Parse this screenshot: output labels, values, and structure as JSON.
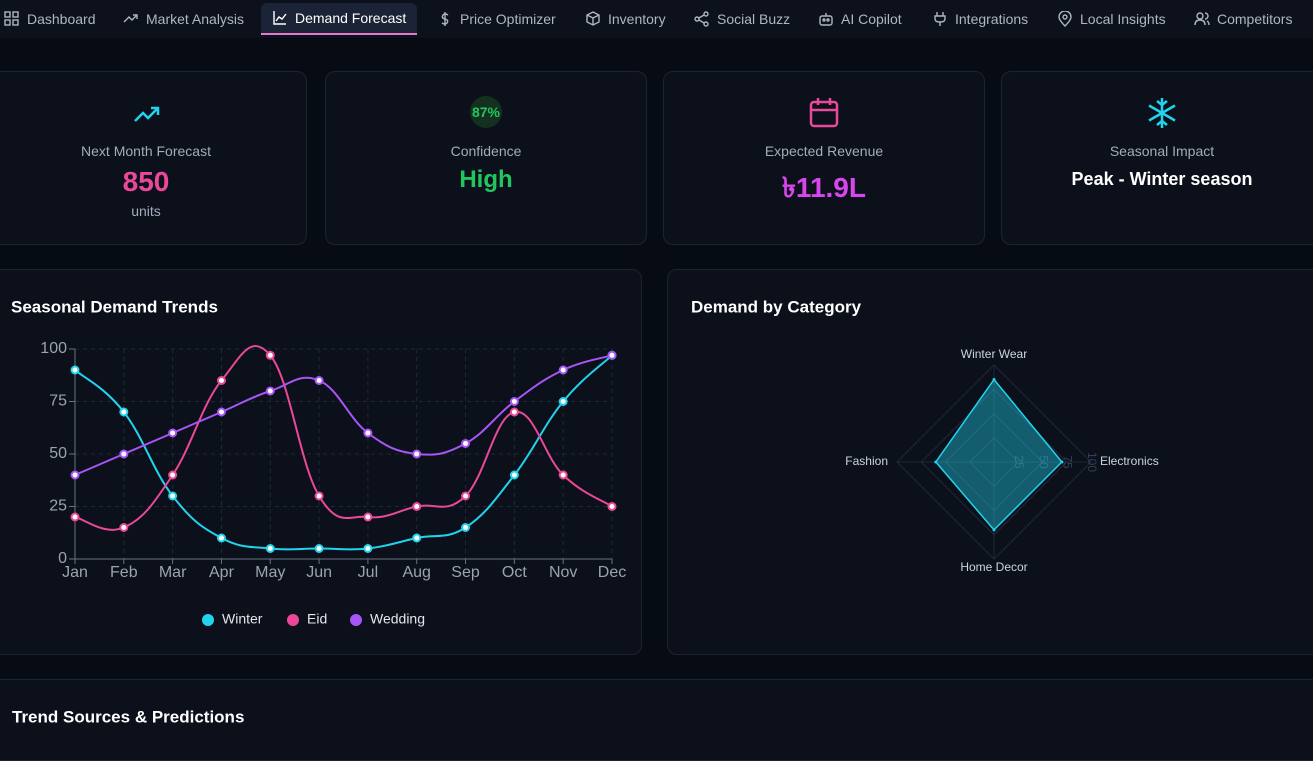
{
  "nav": {
    "items": [
      "Dashboard",
      "Market Analysis",
      "Demand Forecast",
      "Price Optimizer",
      "Inventory",
      "Social Buzz",
      "AI Copilot",
      "Integrations",
      "Local Insights",
      "Competitors"
    ]
  },
  "cards": [
    {
      "label": "Next Month Forecast",
      "value": "850",
      "unit": "units"
    },
    {
      "badge": "87%",
      "label": "Confidence",
      "value": "High"
    },
    {
      "label": "Expected Revenue",
      "value": "৳11.9L"
    },
    {
      "label": "Seasonal Impact",
      "value": "Peak - Winter season"
    }
  ],
  "chart_data": [
    {
      "type": "line",
      "title": "Seasonal Demand Trends",
      "categories": [
        "Jan",
        "Feb",
        "Mar",
        "Apr",
        "May",
        "Jun",
        "Jul",
        "Aug",
        "Sep",
        "Oct",
        "Nov",
        "Dec"
      ],
      "series": [
        {
          "name": "Winter",
          "color": "#22d3ee",
          "values": [
            90,
            70,
            30,
            10,
            5,
            5,
            5,
            10,
            15,
            40,
            75,
            97
          ]
        },
        {
          "name": "Eid",
          "color": "#ec4899",
          "values": [
            20,
            15,
            40,
            85,
            97,
            30,
            20,
            25,
            30,
            70,
            40,
            25
          ]
        },
        {
          "name": "Wedding",
          "color": "#a855f7",
          "values": [
            40,
            50,
            60,
            70,
            80,
            85,
            60,
            50,
            55,
            75,
            90,
            97
          ]
        }
      ],
      "ylim": [
        0,
        100
      ],
      "yticks": [
        0,
        25,
        50,
        75,
        100
      ],
      "grid": true,
      "legend": "bottom"
    },
    {
      "type": "radar",
      "title": "Demand by Category",
      "categories": [
        "Winter Wear",
        "Electronics",
        "Home Decor",
        "Fashion"
      ],
      "values": [
        85,
        70,
        70,
        60
      ],
      "color": "#22d3ee",
      "rlim": [
        0,
        100
      ],
      "rticks": [
        25,
        50,
        75,
        100
      ],
      "grid": true
    }
  ],
  "sections": {
    "title": "Trend Sources & Predictions"
  }
}
